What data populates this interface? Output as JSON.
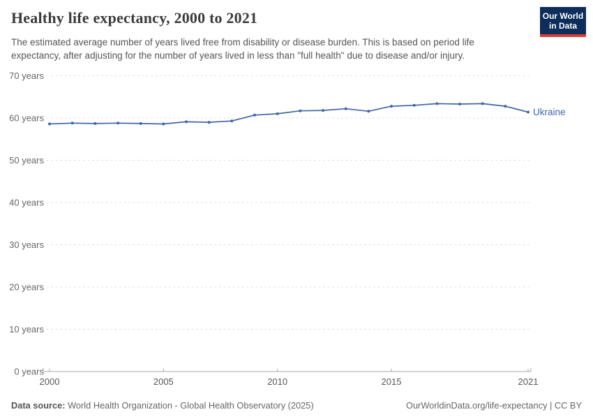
{
  "header": {
    "title": "Healthy life expectancy, 2000 to 2021",
    "subtitle_line1": "The estimated average number of years lived free from disability or disease burden. This is based on period life",
    "subtitle_line2": "expectancy, after adjusting for the number of years lived in less than \"full health\" due to disease and/or injury."
  },
  "logo": {
    "line1": "Our World",
    "line2": "in Data",
    "bg_color": "#0d2d5a",
    "accent_color": "#dc3a2f"
  },
  "chart_data": {
    "type": "line",
    "title": "Healthy life expectancy, 2000 to 2021",
    "unit": "years",
    "x": [
      2000,
      2001,
      2002,
      2003,
      2004,
      2005,
      2006,
      2007,
      2008,
      2009,
      2010,
      2011,
      2012,
      2013,
      2014,
      2015,
      2016,
      2017,
      2018,
      2019,
      2020,
      2021
    ],
    "series": [
      {
        "name": "Ukraine",
        "color": "#4166a5",
        "values": [
          58.6,
          58.8,
          58.7,
          58.8,
          58.7,
          58.6,
          59.1,
          59.0,
          59.3,
          60.7,
          61.0,
          61.7,
          61.8,
          62.2,
          61.6,
          62.8,
          63.0,
          63.4,
          63.3,
          63.4,
          62.8,
          61.4
        ]
      }
    ],
    "xlim": [
      2000,
      2021
    ],
    "ylim": [
      0,
      70
    ],
    "xtick_values": [
      2000,
      2005,
      2010,
      2015,
      2021
    ],
    "xtick_labels": [
      "2000",
      "2005",
      "2010",
      "2015",
      "2021"
    ],
    "ytick_values": [
      0,
      10,
      20,
      30,
      40,
      50,
      60,
      70
    ],
    "ytick_labels": [
      "0 years",
      "10 years",
      "20 years",
      "30 years",
      "40 years",
      "50 years",
      "60 years",
      "70 years"
    ],
    "grid": "horizontal-dashed",
    "legend": "line-end-label",
    "end_label": "Ukraine"
  },
  "footer": {
    "source_label": "Data source:",
    "source_value": " World Health Organization - Global Health Observatory (2025)",
    "link": "OurWorldinData.org/life-expectancy | CC BY"
  },
  "colors": {
    "line": "#4166a5",
    "grid": "#dcdcdc",
    "axis": "#a8a8a8",
    "ytick_text": "#666666",
    "xtick_text": "#555555",
    "title_text": "#3b3b3b",
    "subtitle_text": "#555555"
  }
}
